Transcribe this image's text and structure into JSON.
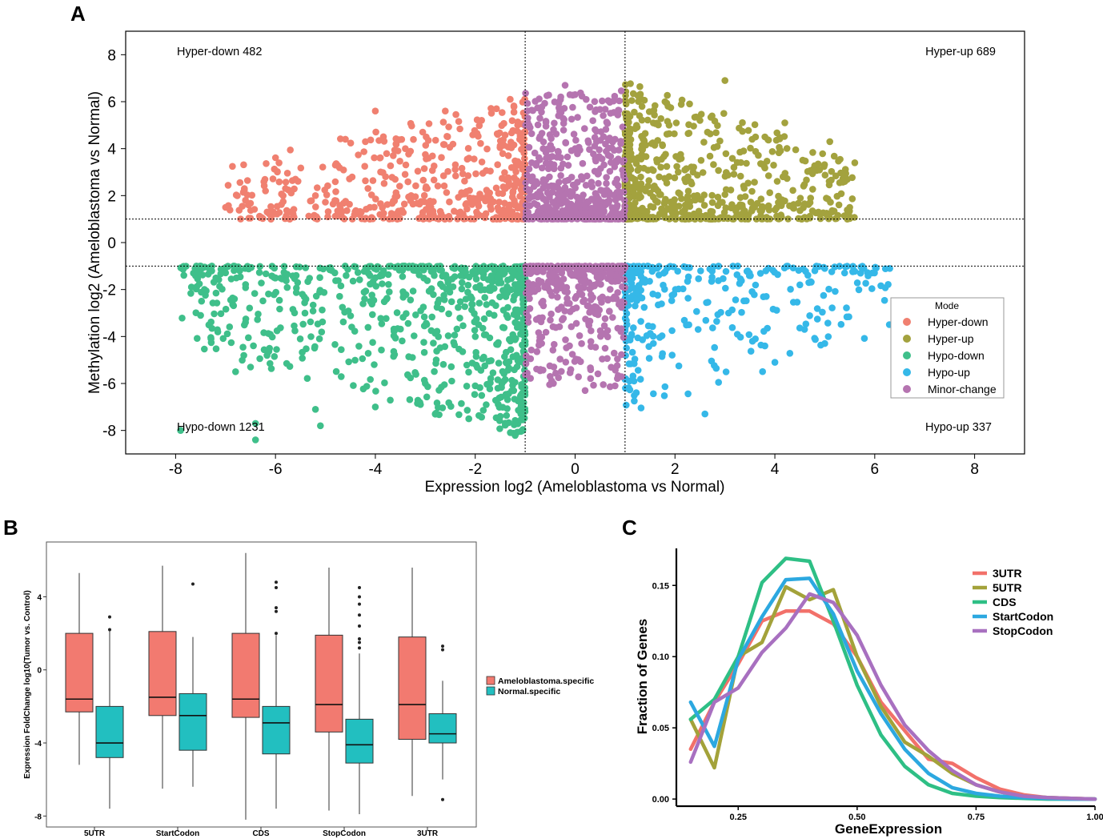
{
  "chart_data": [
    {
      "panel_label": "A",
      "type": "scatter",
      "title": "",
      "xlabel": "Expression log2 (Ameloblastoma vs Normal)",
      "ylabel": "Methylation log2 (Ameloblastoma vs Normal)",
      "xlim": [
        -9,
        9
      ],
      "ylim": [
        -9,
        9
      ],
      "x_ticks": [
        -8,
        -6,
        -4,
        -2,
        0,
        2,
        4,
        6,
        8
      ],
      "y_ticks": [
        -8,
        -6,
        -4,
        -2,
        0,
        2,
        4,
        6,
        8
      ],
      "threshold_lines": {
        "x": [
          -1,
          1
        ],
        "y": [
          -1,
          1
        ]
      },
      "legend_title": "Mode",
      "legend_position": "right",
      "series": [
        {
          "name": "Hyper-down",
          "color": "#F08070",
          "count": 482,
          "x_range": [
            -7,
            -1
          ],
          "y_range": [
            1,
            6.2
          ],
          "tail_points": [
            [
              -7.0,
              1.5
            ],
            [
              -6.6,
              1.8
            ],
            [
              -6.2,
              2.2
            ],
            [
              -5.8,
              2.3
            ],
            [
              -5.6,
              2.7
            ],
            [
              -5.2,
              2.0
            ],
            [
              -4.8,
              3.3
            ],
            [
              -4.6,
              4.4
            ],
            [
              -4.2,
              4.3
            ],
            [
              -4.0,
              5.6
            ],
            [
              -3.4,
              4.0
            ],
            [
              -2.6,
              5.6
            ],
            [
              -1.3,
              6.1
            ]
          ]
        },
        {
          "name": "Hyper-up",
          "color": "#A3A23E",
          "count": 689,
          "x_range": [
            1,
            5.6
          ],
          "y_range": [
            1,
            6.9
          ],
          "tail_points": [
            [
              3.0,
              6.9
            ],
            [
              4.2,
              5.1
            ],
            [
              5.6,
              3.4
            ],
            [
              5.1,
              4.3
            ],
            [
              5.4,
              2.6
            ],
            [
              5.5,
              1.5
            ],
            [
              3.8,
              4.5
            ],
            [
              2.5,
              5.2
            ],
            [
              1.8,
              6.0
            ]
          ]
        },
        {
          "name": "Hypo-down",
          "color": "#3FBF8A",
          "count": 1231,
          "x_range": [
            -7.9,
            -1
          ],
          "y_range": [
            -8.4,
            -1
          ],
          "tail_points": [
            [
              -7.9,
              -8.0
            ],
            [
              -7.5,
              -3.1
            ],
            [
              -6.8,
              -5.5
            ],
            [
              -6.5,
              -5.3
            ],
            [
              -6.4,
              -7.7
            ],
            [
              -6.4,
              -8.4
            ],
            [
              -5.2,
              -7.1
            ],
            [
              -5.1,
              -7.8
            ],
            [
              -4.0,
              -7.0
            ],
            [
              -2.8,
              -7.3
            ],
            [
              -2.0,
              -6.1
            ],
            [
              -6.0,
              -1.5
            ]
          ]
        },
        {
          "name": "Hypo-up",
          "color": "#35B8E8",
          "count": 337,
          "x_range": [
            1,
            6.3
          ],
          "y_range": [
            -7.3,
            -1
          ],
          "tail_points": [
            [
              6.3,
              -1.1
            ],
            [
              2.6,
              -7.3
            ],
            [
              5.0,
              -4.3
            ],
            [
              4.0,
              -5.1
            ],
            [
              3.8,
              -4.4
            ],
            [
              4.5,
              -1.8
            ],
            [
              4.8,
              -1.2
            ],
            [
              5.0,
              -1.1
            ]
          ]
        },
        {
          "name": "Minor-change",
          "color": "#B574B0",
          "count": null,
          "x_range": [
            -1,
            1
          ],
          "y_range": [
            -6.4,
            6.7
          ],
          "tail_points": [
            [
              -0.2,
              6.7
            ],
            [
              0.0,
              6.3
            ],
            [
              0.2,
              -6.3
            ],
            [
              0.8,
              -6.1
            ],
            [
              -0.5,
              -5.7
            ]
          ]
        }
      ],
      "annotations": [
        {
          "text": "Hyper-down 482",
          "position": "top-left"
        },
        {
          "text": "Hyper-up 689",
          "position": "top-right"
        },
        {
          "text": "Hypo-down 1231",
          "position": "bottom-left"
        },
        {
          "text": "Hypo-up 337",
          "position": "bottom-right"
        }
      ]
    },
    {
      "panel_label": "B",
      "type": "box",
      "title": "",
      "xlabel": "",
      "ylabel": "Expression FoldChange log10(Tumor vs. Control)",
      "ylim": [
        -8.6,
        7.0
      ],
      "y_ticks": [
        -8,
        -4,
        0,
        4
      ],
      "categories": [
        "5UTR",
        "StartCodon",
        "CDS",
        "StopCodon",
        "3UTR"
      ],
      "legend_position": "right",
      "series": [
        {
          "name": "Ameloblastoma.specific",
          "color": "#F27A70",
          "boxes": [
            {
              "whislo": -5.2,
              "q1": -2.3,
              "med": -1.6,
              "q3": 2.0,
              "whishi": 5.3,
              "fliers": []
            },
            {
              "whislo": -6.5,
              "q1": -2.5,
              "med": -1.5,
              "q3": 2.1,
              "whishi": 5.7,
              "fliers": []
            },
            {
              "whislo": -8.2,
              "q1": -2.6,
              "med": -1.6,
              "q3": 2.0,
              "whishi": 6.4,
              "fliers": []
            },
            {
              "whislo": -7.7,
              "q1": -3.4,
              "med": -1.9,
              "q3": 1.9,
              "whishi": 5.6,
              "fliers": []
            },
            {
              "whislo": -6.9,
              "q1": -3.8,
              "med": -1.9,
              "q3": 1.8,
              "whishi": 5.6,
              "fliers": []
            }
          ]
        },
        {
          "name": "Normal.specific",
          "color": "#22BFC0",
          "boxes": [
            {
              "whislo": -7.6,
              "q1": -4.8,
              "med": -4.0,
              "q3": -2.0,
              "whishi": 2.2,
              "fliers": [
                2.2,
                2.9
              ]
            },
            {
              "whislo": -6.4,
              "q1": -4.4,
              "med": -2.5,
              "q3": -1.3,
              "whishi": 1.8,
              "fliers": [
                4.7
              ]
            },
            {
              "whislo": -7.6,
              "q1": -4.6,
              "med": -2.9,
              "q3": -2.0,
              "whishi": 1.9,
              "fliers": [
                2.0,
                3.2,
                3.4,
                4.5,
                4.8
              ]
            },
            {
              "whislo": -7.9,
              "q1": -5.1,
              "med": -4.1,
              "q3": -2.7,
              "whishi": 0.9,
              "fliers": [
                1.2,
                1.5,
                1.7,
                2.4,
                3.0,
                3.6,
                4.0,
                4.5
              ]
            },
            {
              "whislo": -6.0,
              "q1": -4.0,
              "med": -3.5,
              "q3": -2.4,
              "whishi": -0.6,
              "fliers": [
                1.1,
                1.3,
                -7.1
              ]
            }
          ]
        }
      ]
    },
    {
      "panel_label": "C",
      "type": "line",
      "title": "",
      "xlabel": "GeneExpression",
      "ylabel": "Fraction of Genes",
      "xlim": [
        0.12,
        1.0
      ],
      "ylim": [
        -0.005,
        0.176
      ],
      "x_ticks": [
        0.25,
        0.5,
        0.75,
        1.0
      ],
      "x_tick_labels": [
        "0.25",
        "0.50",
        "0.75",
        "1.00"
      ],
      "y_ticks": [
        0.0,
        0.05,
        0.1,
        0.15
      ],
      "y_tick_labels": [
        "0.00",
        "0.05",
        "0.10",
        "0.15"
      ],
      "legend_position": "top-right",
      "x": [
        0.15,
        0.2,
        0.25,
        0.3,
        0.35,
        0.4,
        0.45,
        0.5,
        0.55,
        0.6,
        0.65,
        0.7,
        0.75,
        0.8,
        0.85,
        0.9,
        0.95,
        1.0
      ],
      "series": [
        {
          "name": "3UTR",
          "color": "#F2716A",
          "values": [
            0.035,
            0.068,
            0.095,
            0.125,
            0.132,
            0.132,
            0.123,
            0.1,
            0.068,
            0.048,
            0.028,
            0.025,
            0.015,
            0.007,
            0.003,
            0.001,
            0.0005,
            0.0
          ]
        },
        {
          "name": "5UTR",
          "color": "#A3A23A",
          "values": [
            0.056,
            0.022,
            0.1,
            0.11,
            0.149,
            0.14,
            0.147,
            0.1,
            0.065,
            0.04,
            0.03,
            0.018,
            0.01,
            0.005,
            0.002,
            0.001,
            0.0005,
            0.0
          ]
        },
        {
          "name": "CDS",
          "color": "#2EBF85",
          "values": [
            0.056,
            0.07,
            0.1,
            0.152,
            0.169,
            0.167,
            0.125,
            0.08,
            0.045,
            0.023,
            0.01,
            0.004,
            0.002,
            0.001,
            0.0005,
            0.0,
            0.0,
            0.0
          ]
        },
        {
          "name": "StartCodon",
          "color": "#2CA8E0",
          "values": [
            0.068,
            0.037,
            0.098,
            0.128,
            0.154,
            0.155,
            0.13,
            0.09,
            0.06,
            0.035,
            0.018,
            0.008,
            0.004,
            0.002,
            0.001,
            0.0005,
            0.0,
            0.0
          ]
        },
        {
          "name": "StopCodon",
          "color": "#A870C0",
          "values": [
            0.026,
            0.068,
            0.078,
            0.103,
            0.12,
            0.144,
            0.138,
            0.115,
            0.08,
            0.052,
            0.034,
            0.02,
            0.01,
            0.005,
            0.002,
            0.001,
            0.0005,
            0.0
          ]
        }
      ]
    }
  ]
}
